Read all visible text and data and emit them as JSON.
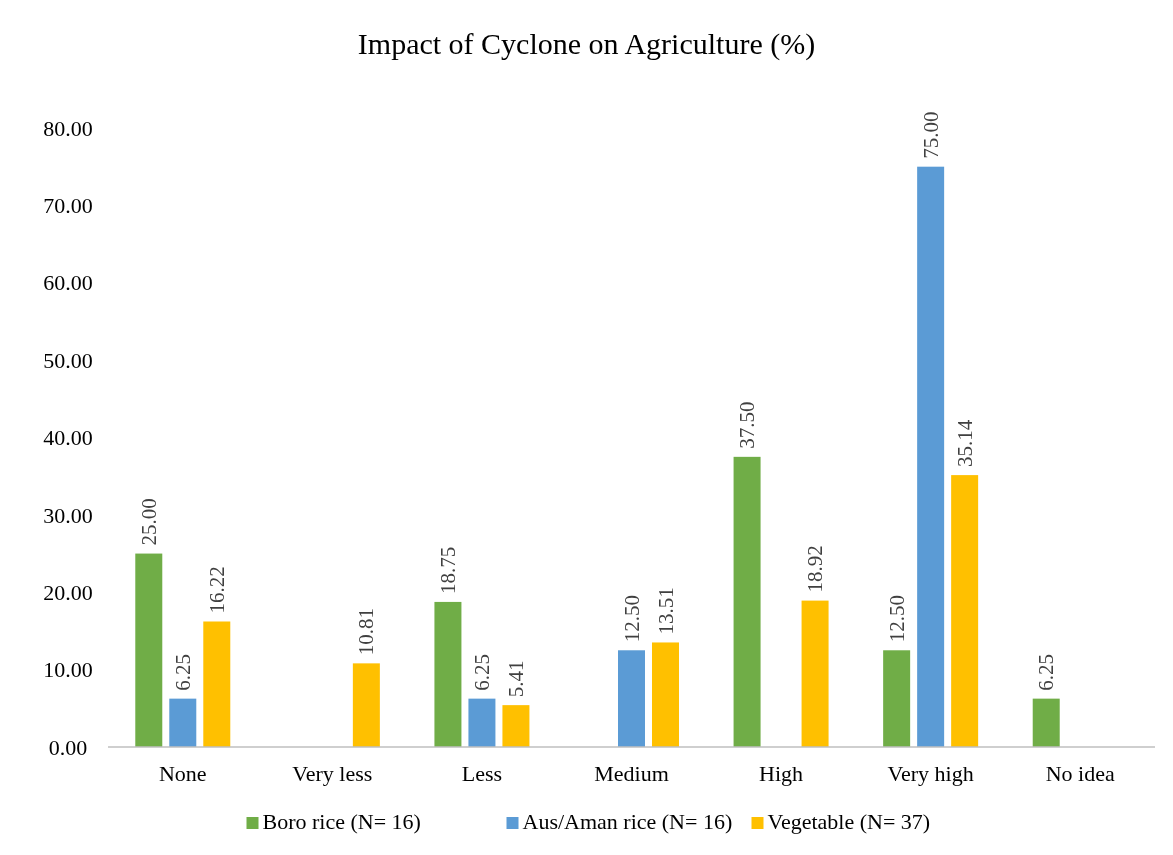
{
  "chart_data": {
    "type": "bar",
    "title": "Impact of Cyclone on Agriculture (%)",
    "categories": [
      "None",
      "Very less",
      "Less",
      "Medium",
      "High",
      "Very high",
      "No idea"
    ],
    "series": [
      {
        "name": "Boro rice (N= 16)",
        "color": "#70ad47",
        "values": [
          25,
          null,
          18.75,
          null,
          37.5,
          12.5,
          6.25
        ],
        "value_labels": [
          "25.00",
          null,
          "18.75",
          null,
          "37.50",
          "12.50",
          "6.25"
        ]
      },
      {
        "name": "Aus/Aman rice (N= 16)",
        "color": "#5b9bd5",
        "values": [
          6.25,
          null,
          6.25,
          12.5,
          null,
          75,
          null
        ],
        "value_labels": [
          "6.25",
          null,
          "6.25",
          "12.50",
          null,
          "75.00",
          null
        ]
      },
      {
        "name": "Vegetable (N= 37)",
        "color": "#ffc000",
        "values": [
          16.22,
          10.81,
          5.41,
          13.51,
          18.92,
          35.14,
          null
        ],
        "value_labels": [
          "16.22",
          "10.81",
          "5.41",
          "13.51",
          "18.92",
          "35.14",
          null
        ]
      }
    ],
    "ylim": [
      0,
      80
    ],
    "yticks": [
      {
        "value": 0,
        "label": "0.00"
      },
      {
        "value": 10,
        "label": "10.00"
      },
      {
        "value": 20,
        "label": "20.00"
      },
      {
        "value": 30,
        "label": "30.00"
      },
      {
        "value": 40,
        "label": "40.00"
      },
      {
        "value": 50,
        "label": "50.00"
      },
      {
        "value": 60,
        "label": "60.00"
      },
      {
        "value": 70,
        "label": "70.00"
      },
      {
        "value": 80,
        "label": "80.00"
      }
    ],
    "grid": false,
    "legend": "bottom"
  }
}
